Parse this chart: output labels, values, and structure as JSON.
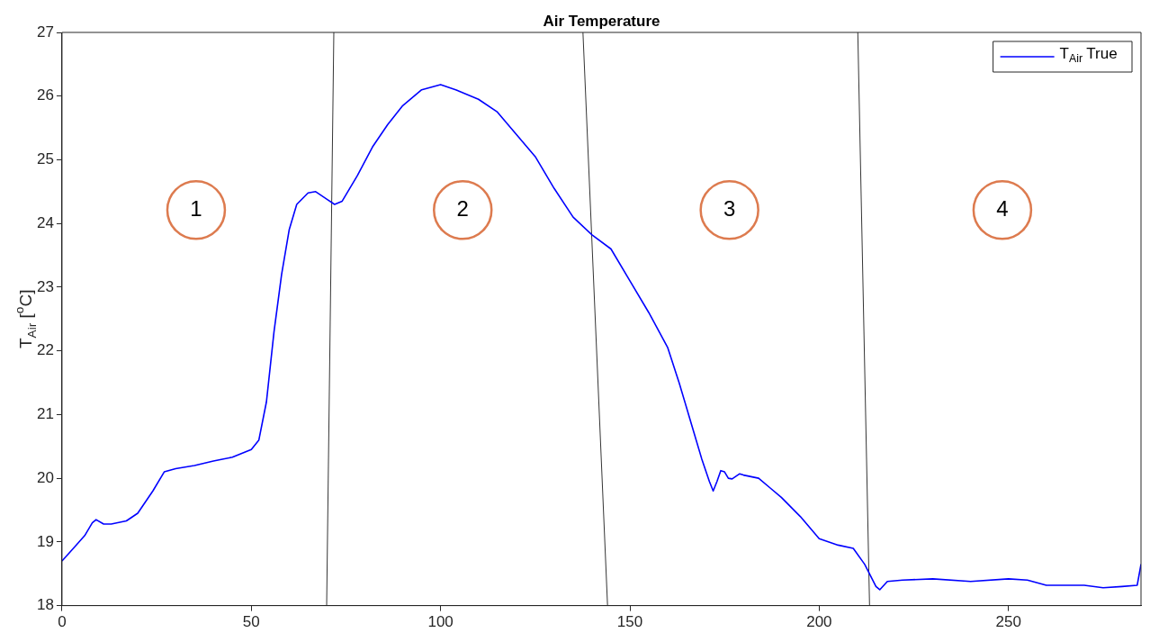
{
  "chart_data": {
    "type": "line",
    "title": "Air Temperature",
    "ylabel": "T$_{Air}$ [$^{o}$C]",
    "xlim": [
      0,
      285
    ],
    "xticks": [
      0,
      50,
      100,
      150,
      200,
      250
    ],
    "ylim": [
      18,
      27
    ],
    "yticks": [
      18,
      19,
      20,
      21,
      22,
      23,
      24,
      25,
      26,
      27
    ],
    "grid": false,
    "legend": "top right",
    "marker": "none",
    "line_style": "solid",
    "series": [
      {
        "name": "T$_{Air}$ True",
        "color": "#0000ff",
        "x": [
          0,
          3,
          6,
          8,
          9,
          11,
          13,
          17,
          20,
          24,
          27,
          30,
          35,
          40,
          45,
          50,
          52,
          54,
          56,
          58,
          60,
          62,
          65,
          67,
          70,
          72,
          74,
          78,
          82,
          86,
          90,
          95,
          100,
          104,
          110,
          115,
          120,
          125,
          130,
          135,
          140,
          145,
          150,
          155,
          160,
          163,
          166,
          169,
          171,
          172,
          173,
          174,
          175,
          176,
          177,
          179,
          180,
          184,
          187,
          190,
          195,
          200,
          205,
          209,
          212,
          215,
          216,
          218,
          222,
          230,
          240,
          250,
          255,
          260,
          265,
          270,
          275,
          280,
          284,
          285
        ],
        "values": [
          18.7,
          18.9,
          19.1,
          19.3,
          19.35,
          19.28,
          19.28,
          19.33,
          19.45,
          19.8,
          20.1,
          20.15,
          20.2,
          20.27,
          20.33,
          20.45,
          20.6,
          21.2,
          22.3,
          23.2,
          23.9,
          24.3,
          24.48,
          24.5,
          24.38,
          24.3,
          24.35,
          24.75,
          25.2,
          25.55,
          25.85,
          26.1,
          26.18,
          26.1,
          25.95,
          25.75,
          25.4,
          25.05,
          24.55,
          24.1,
          23.82,
          23.6,
          23.1,
          22.6,
          22.05,
          21.5,
          20.9,
          20.3,
          19.95,
          19.8,
          19.95,
          20.12,
          20.1,
          20.0,
          19.99,
          20.07,
          20.05,
          20.0,
          19.85,
          19.7,
          19.4,
          19.05,
          18.95,
          18.9,
          18.65,
          18.3,
          18.25,
          18.38,
          18.4,
          18.42,
          18.38,
          18.42,
          18.4,
          18.32,
          18.32,
          18.32,
          18.28,
          18.3,
          18.32,
          18.65
        ]
      },
      {
        "type": "line",
        "color": "#000000",
        "x": [
          71.8,
          69.9
        ],
        "values": [
          27,
          18
        ]
      },
      {
        "type": "line",
        "color": "#000000",
        "x": [
          137.6,
          144.1
        ],
        "values": [
          27,
          18
        ]
      },
      {
        "type": "line",
        "color": "#000000",
        "x": [
          210.2,
          213.3
        ],
        "values": [
          27,
          18
        ]
      }
    ],
    "annotations": [
      "1",
      "2",
      "3",
      "4"
    ]
  }
}
